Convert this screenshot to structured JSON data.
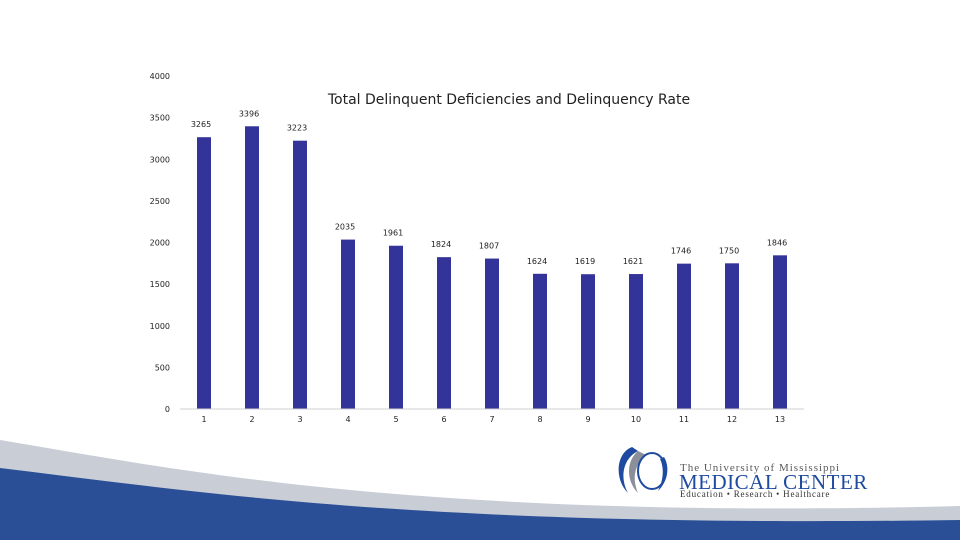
{
  "chart_data": {
    "type": "bar",
    "title": "Total Delinquent Deficiencies and Delinquency Rate",
    "categories": [
      "1",
      "2",
      "3",
      "4",
      "5",
      "6",
      "7",
      "8",
      "9",
      "10",
      "11",
      "12",
      "13"
    ],
    "values": [
      3265,
      3396,
      3223,
      2035,
      1961,
      1824,
      1807,
      1624,
      1619,
      1621,
      1746,
      1750,
      1846
    ],
    "ylim": [
      0,
      4000
    ],
    "yticks": [
      0,
      500,
      1000,
      1500,
      2000,
      2500,
      3000,
      3500,
      4000
    ],
    "grid": false,
    "bar_color": "#33339a"
  },
  "branding": {
    "line1": "The University of Mississippi",
    "line2": "MEDICAL CENTER",
    "line3": "Education • Research • Healthcare",
    "primary_color": "#1e4aa0",
    "band_color": "#2a4f96"
  }
}
